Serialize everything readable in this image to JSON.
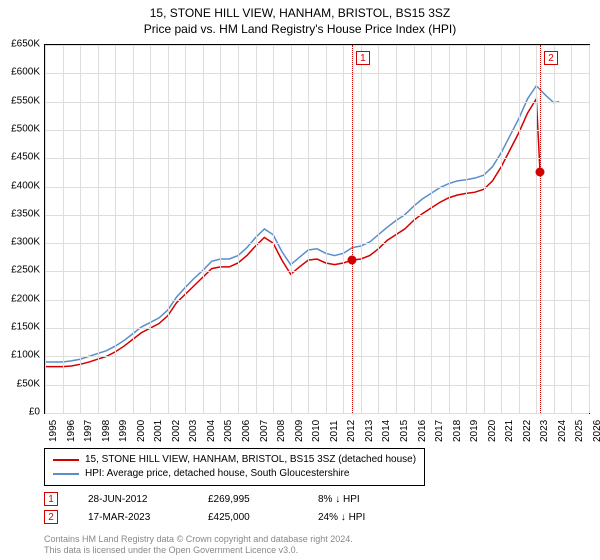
{
  "title_line1": "15, STONE HILL VIEW, HANHAM, BRISTOL, BS15 3SZ",
  "title_line2": "Price paid vs. HM Land Registry's House Price Index (HPI)",
  "chart": {
    "type": "line",
    "background_color": "#ffffff",
    "grid_color": "#dddddd",
    "axis_color": "#000000",
    "x": {
      "min": 1995,
      "max": 2026,
      "tick_step": 1,
      "ticks": [
        1995,
        1996,
        1997,
        1998,
        1999,
        2000,
        2001,
        2002,
        2003,
        2004,
        2005,
        2006,
        2007,
        2008,
        2009,
        2010,
        2011,
        2012,
        2013,
        2014,
        2015,
        2016,
        2017,
        2018,
        2019,
        2020,
        2021,
        2022,
        2023,
        2024,
        2025,
        2026
      ],
      "label_rotation_deg": -90,
      "label_fontsize": 10
    },
    "y": {
      "min": 0,
      "max": 650000,
      "tick_step": 50000,
      "ticks_labels": [
        "£0",
        "£50K",
        "£100K",
        "£150K",
        "£200K",
        "£250K",
        "£300K",
        "£350K",
        "£400K",
        "£450K",
        "£500K",
        "£550K",
        "£600K",
        "£650K"
      ],
      "label_fontsize": 10
    },
    "series": [
      {
        "id": "property",
        "label": "15, STONE HILL VIEW, HANHAM, BRISTOL, BS15 3SZ (detached house)",
        "color": "#d40000",
        "line_width": 1.5,
        "points": [
          [
            1995.0,
            82000
          ],
          [
            1995.5,
            82000
          ],
          [
            1996.0,
            82000
          ],
          [
            1996.5,
            83000
          ],
          [
            1997.0,
            86000
          ],
          [
            1997.5,
            90000
          ],
          [
            1998.0,
            95000
          ],
          [
            1998.5,
            100000
          ],
          [
            1999.0,
            108000
          ],
          [
            1999.5,
            118000
          ],
          [
            2000.0,
            130000
          ],
          [
            2000.5,
            142000
          ],
          [
            2001.0,
            150000
          ],
          [
            2001.5,
            158000
          ],
          [
            2002.0,
            172000
          ],
          [
            2002.5,
            195000
          ],
          [
            2003.0,
            210000
          ],
          [
            2003.5,
            225000
          ],
          [
            2004.0,
            240000
          ],
          [
            2004.5,
            255000
          ],
          [
            2005.0,
            258000
          ],
          [
            2005.5,
            258000
          ],
          [
            2006.0,
            265000
          ],
          [
            2006.5,
            278000
          ],
          [
            2007.0,
            295000
          ],
          [
            2007.5,
            310000
          ],
          [
            2008.0,
            300000
          ],
          [
            2008.5,
            270000
          ],
          [
            2009.0,
            245000
          ],
          [
            2009.5,
            258000
          ],
          [
            2010.0,
            270000
          ],
          [
            2010.5,
            272000
          ],
          [
            2011.0,
            265000
          ],
          [
            2011.5,
            262000
          ],
          [
            2012.0,
            265000
          ],
          [
            2012.5,
            269995
          ],
          [
            2013.0,
            272000
          ],
          [
            2013.5,
            278000
          ],
          [
            2014.0,
            290000
          ],
          [
            2014.5,
            305000
          ],
          [
            2015.0,
            315000
          ],
          [
            2015.5,
            325000
          ],
          [
            2016.0,
            340000
          ],
          [
            2016.5,
            352000
          ],
          [
            2017.0,
            362000
          ],
          [
            2017.5,
            372000
          ],
          [
            2018.0,
            380000
          ],
          [
            2018.5,
            385000
          ],
          [
            2019.0,
            388000
          ],
          [
            2019.5,
            390000
          ],
          [
            2020.0,
            395000
          ],
          [
            2020.5,
            410000
          ],
          [
            2021.0,
            435000
          ],
          [
            2021.5,
            465000
          ],
          [
            2022.0,
            495000
          ],
          [
            2022.5,
            530000
          ],
          [
            2023.0,
            555000
          ],
          [
            2023.21,
            425000
          ]
        ]
      },
      {
        "id": "hpi",
        "label": "HPI: Average price, detached house, South Gloucestershire",
        "color": "#5a8ecb",
        "line_width": 1.5,
        "points": [
          [
            1995.0,
            90000
          ],
          [
            1995.5,
            90000
          ],
          [
            1996.0,
            90000
          ],
          [
            1996.5,
            92000
          ],
          [
            1997.0,
            95000
          ],
          [
            1997.5,
            100000
          ],
          [
            1998.0,
            105000
          ],
          [
            1998.5,
            110000
          ],
          [
            1999.0,
            118000
          ],
          [
            1999.5,
            128000
          ],
          [
            2000.0,
            140000
          ],
          [
            2000.5,
            152000
          ],
          [
            2001.0,
            160000
          ],
          [
            2001.5,
            168000
          ],
          [
            2002.0,
            182000
          ],
          [
            2002.5,
            205000
          ],
          [
            2003.0,
            222000
          ],
          [
            2003.5,
            238000
          ],
          [
            2004.0,
            252000
          ],
          [
            2004.5,
            268000
          ],
          [
            2005.0,
            272000
          ],
          [
            2005.5,
            272000
          ],
          [
            2006.0,
            278000
          ],
          [
            2006.5,
            292000
          ],
          [
            2007.0,
            310000
          ],
          [
            2007.5,
            325000
          ],
          [
            2008.0,
            315000
          ],
          [
            2008.5,
            285000
          ],
          [
            2009.0,
            262000
          ],
          [
            2009.5,
            275000
          ],
          [
            2010.0,
            288000
          ],
          [
            2010.5,
            290000
          ],
          [
            2011.0,
            282000
          ],
          [
            2011.5,
            278000
          ],
          [
            2012.0,
            282000
          ],
          [
            2012.5,
            292000
          ],
          [
            2013.0,
            295000
          ],
          [
            2013.5,
            302000
          ],
          [
            2014.0,
            315000
          ],
          [
            2014.5,
            328000
          ],
          [
            2015.0,
            340000
          ],
          [
            2015.5,
            350000
          ],
          [
            2016.0,
            365000
          ],
          [
            2016.5,
            378000
          ],
          [
            2017.0,
            388000
          ],
          [
            2017.5,
            398000
          ],
          [
            2018.0,
            405000
          ],
          [
            2018.5,
            410000
          ],
          [
            2019.0,
            412000
          ],
          [
            2019.5,
            415000
          ],
          [
            2020.0,
            420000
          ],
          [
            2020.5,
            435000
          ],
          [
            2021.0,
            460000
          ],
          [
            2021.5,
            490000
          ],
          [
            2022.0,
            520000
          ],
          [
            2022.5,
            555000
          ],
          [
            2023.0,
            578000
          ],
          [
            2023.5,
            562000
          ],
          [
            2024.0,
            548000
          ],
          [
            2024.3,
            550000
          ]
        ]
      }
    ],
    "sale_markers": [
      {
        "n": "1",
        "x": 2012.49,
        "y": 269995
      },
      {
        "n": "2",
        "x": 2023.21,
        "y": 425000
      }
    ]
  },
  "legend": {
    "border_color": "#000000",
    "fontsize": 10,
    "items": [
      {
        "color": "#d40000",
        "label": "15, STONE HILL VIEW, HANHAM, BRISTOL, BS15 3SZ (detached house)"
      },
      {
        "color": "#5a8ecb",
        "label": "HPI: Average price, detached house, South Gloucestershire"
      }
    ]
  },
  "sales": [
    {
      "n": "1",
      "date": "28-JUN-2012",
      "price": "£269,995",
      "pct": "8% ↓ HPI"
    },
    {
      "n": "2",
      "date": "17-MAR-2023",
      "price": "£425,000",
      "pct": "24% ↓ HPI"
    }
  ],
  "attribution": {
    "line1": "Contains HM Land Registry data © Crown copyright and database right 2024.",
    "line2": "This data is licensed under the Open Government Licence v3.0."
  }
}
